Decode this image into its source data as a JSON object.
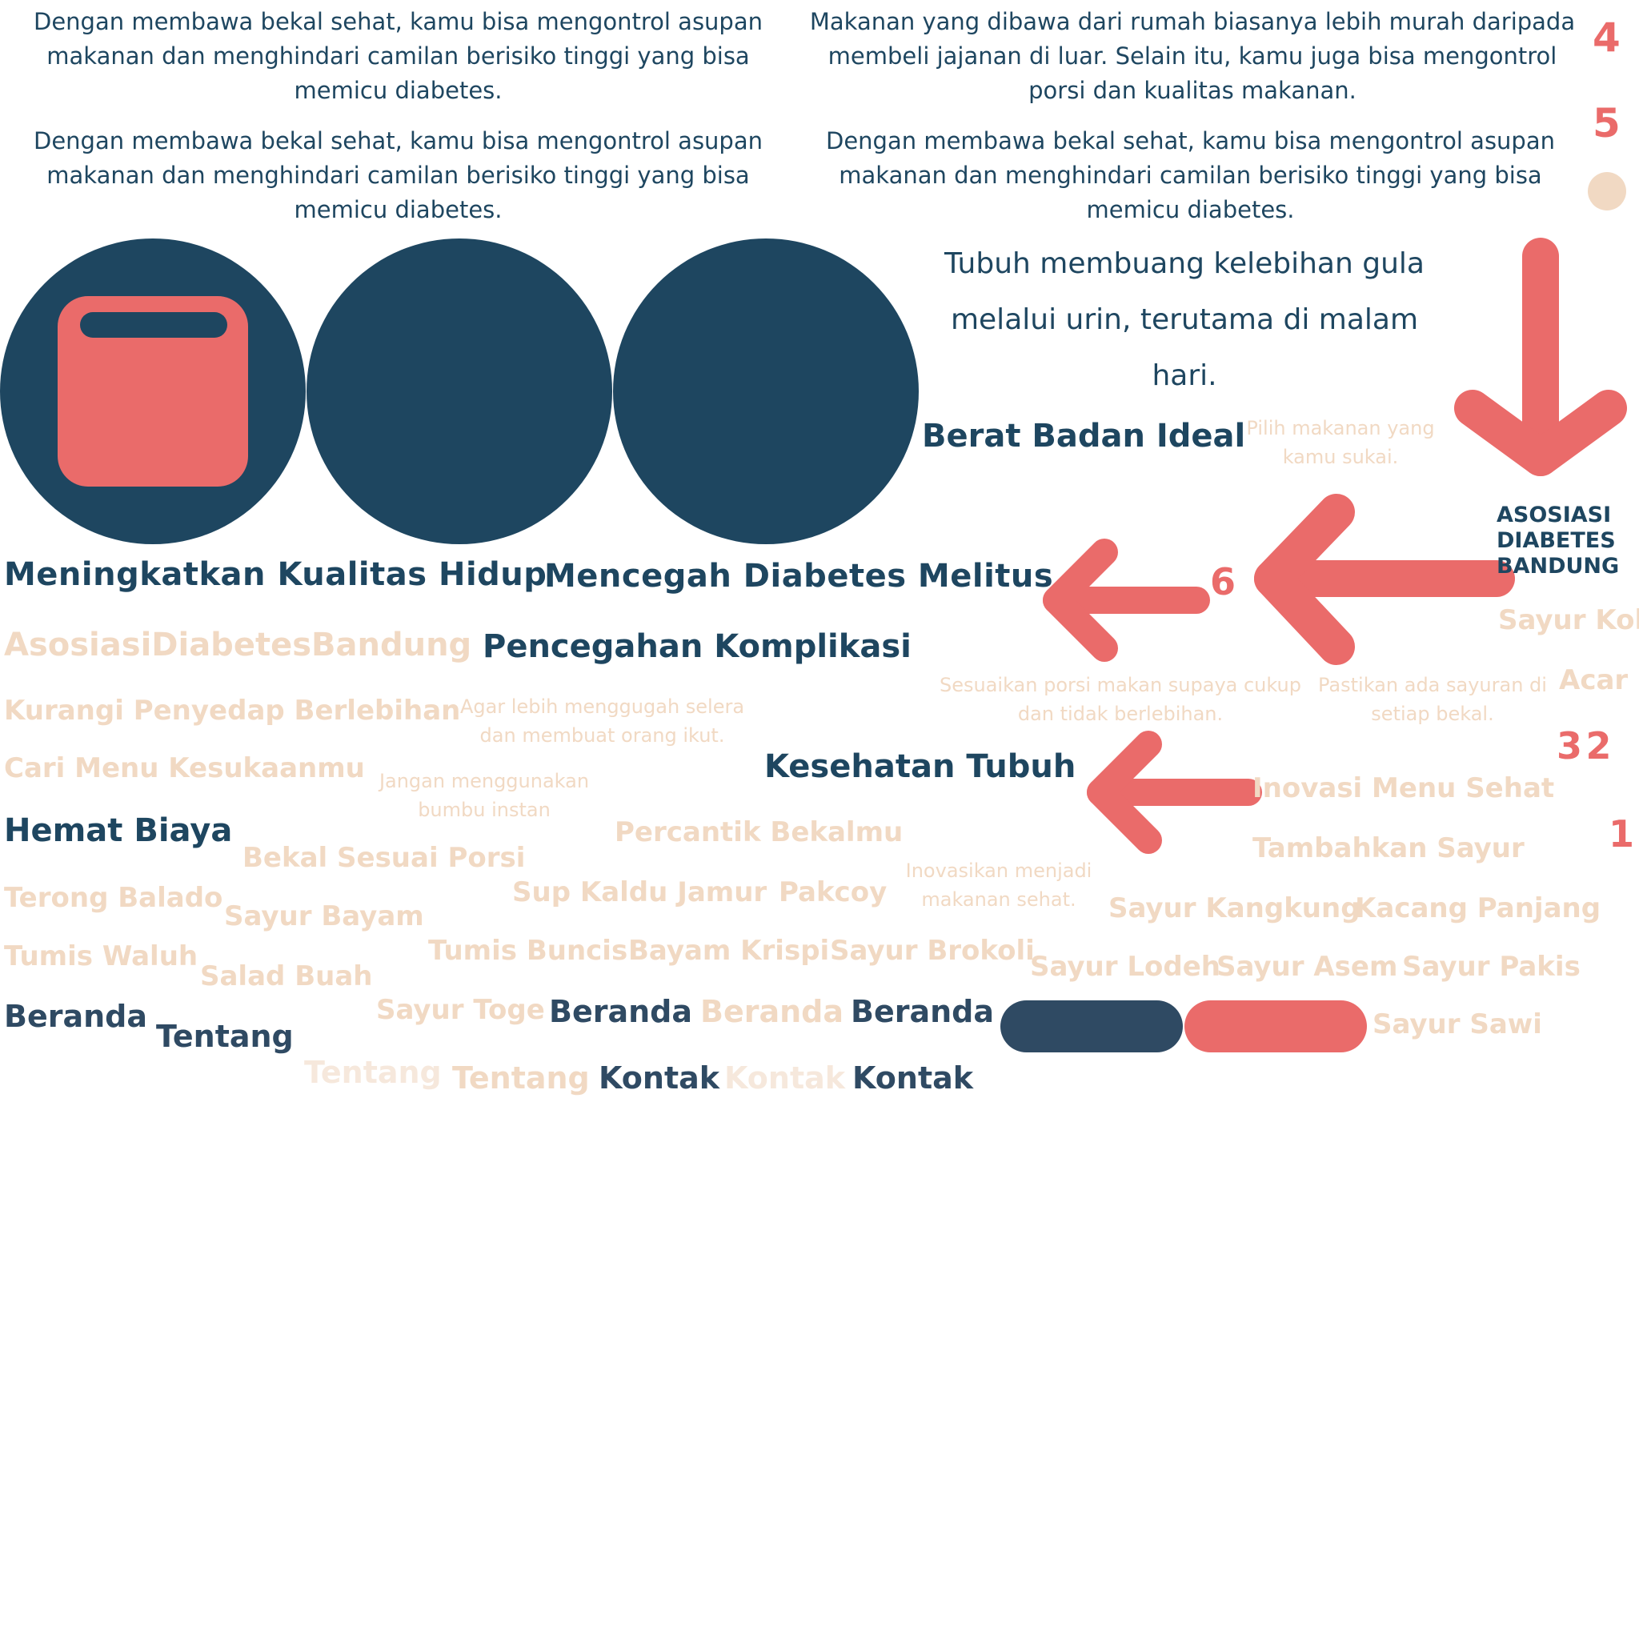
{
  "paragraphs": {
    "p1": "Dengan membawa bekal sehat, kamu bisa mengontrol asupan makanan dan menghindari camilan berisiko tinggi yang bisa memicu diabetes.",
    "p2": "Makanan yang dibawa dari rumah biasanya lebih murah daripada membeli jajanan di luar. Selain itu, kamu juga bisa mengontrol porsi dan kualitas makanan.",
    "p3": "Dengan membawa bekal sehat, kamu bisa mengontrol asupan makanan dan menghindari camilan berisiko tinggi yang bisa memicu diabetes.",
    "p4": "Dengan membawa bekal sehat, kamu bisa mengontrol asupan makanan dan menghindari camilan berisiko tinggi yang bisa memicu diabetes.",
    "p5": "Tubuh membuang kelebihan gula melalui urin, terutama di malam hari."
  },
  "numbers": {
    "n4": "4",
    "n5": "5",
    "n6": "6",
    "n3": "3",
    "n2": "2",
    "n1": "1"
  },
  "headings": {
    "berat_badan": "Berat Badan Ideal",
    "kualitas_hidup": "Meningkatkan Kualitas Hidup",
    "mencegah_diabetes": "Mencegah Diabetes Melitus",
    "asosiasi_word": "AsosiasiDiabetesBandung",
    "pencegahan": "Pencegahan Komplikasi",
    "kesehatan": "Kesehatan Tubuh",
    "hemat": "Hemat Biaya"
  },
  "logo": {
    "line1": "ASOSIASI",
    "line2": "DIABETES",
    "line3": "BANDUNG"
  },
  "captions": {
    "pilih": "Pilih makanan yang kamu sukai.",
    "sesuaikan": "Sesuaikan porsi makan supaya cukup dan tidak berlebihan.",
    "pastikan": "Pastikan ada sayuran di setiap bekal.",
    "agar": "Agar lebih menggugah selera dan membuat orang ikut.",
    "jangan": "Jangan menggunakan bumbu instan",
    "inovasikan": "Inovasikan menjadi makanan sehat."
  },
  "tips": {
    "kurangi": "Kurangi Penyedap Berlebihan",
    "cari_menu": "Cari Menu Kesukaanmu",
    "percantik": "Percantik Bekalmu",
    "bekal_porsi": "Bekal Sesuai Porsi",
    "inovasi_menu": "Inovasi Menu Sehat",
    "tambahkan": "Tambahkan Sayur"
  },
  "menu_items": {
    "sayur_kol": "Sayur Kol",
    "acar": "Acar",
    "terong": "Terong Balado",
    "sup_kaldu": "Sup Kaldu Jamur",
    "pakcoy": "Pakcoy",
    "sayur_bayam": "Sayur Bayam",
    "kangkung": "Sayur Kangkung",
    "kacang": "Kacang Panjang",
    "tumis_waluh": "Tumis Waluh",
    "salad": "Salad Buah",
    "tumis_buncis": "Tumis Buncis",
    "bayam_krispi": "Bayam Krispi",
    "brokoli": "Sayur Brokoli",
    "lodeh": "Sayur Lodeh",
    "asem": "Sayur Asem",
    "pakis": "Sayur Pakis",
    "toge": "Sayur Toge",
    "sawi": "Sayur Sawi"
  },
  "nav": {
    "beranda_1": "Beranda",
    "tentang_1": "Tentang",
    "beranda_2": "Beranda",
    "beranda_3": "Beranda",
    "beranda_4": "Beranda",
    "tentang_2": "Tentang",
    "tentang_3": "Tentang",
    "kontak_1": "Kontak",
    "kontak_2": "Kontak",
    "kontak_3": "Kontak"
  },
  "icons": {
    "calendar": "calendar-icon",
    "arrow_down": "arrow-down-icon",
    "arrow_left": "arrow-left-icon"
  },
  "colors": {
    "navy": "#1e4660",
    "coral": "#ea6b6a",
    "beige": "#f1d9c3",
    "navy_button": "#2f4a63"
  }
}
